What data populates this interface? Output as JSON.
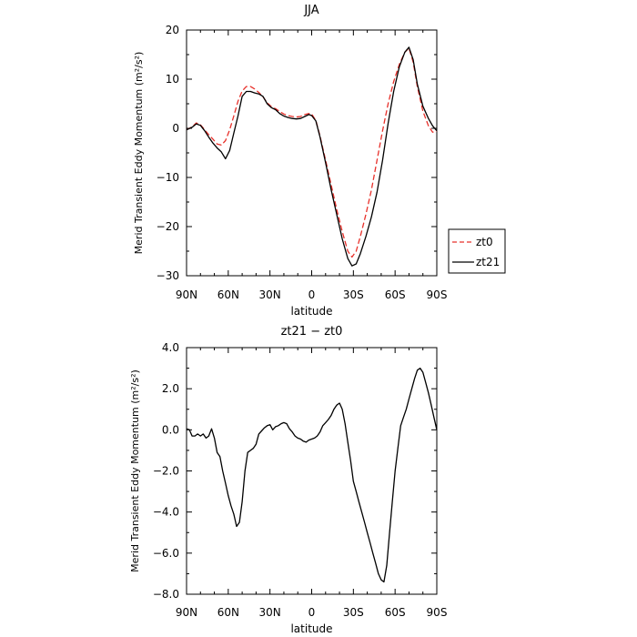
{
  "chart_data": [
    {
      "type": "line",
      "title": "JJA",
      "xlabel": "latitude",
      "ylabel": "Merid Transient Eddy Momentum (m²/s²)",
      "xlim": [
        90,
        -90
      ],
      "ylim": [
        -30,
        20
      ],
      "xticks": [
        90,
        60,
        30,
        0,
        -30,
        -60,
        -90
      ],
      "xtick_labels": [
        "90N",
        "60N",
        "30N",
        "0",
        "30S",
        "60S",
        "90S"
      ],
      "yticks": [
        -30,
        -20,
        -10,
        0,
        10,
        20
      ],
      "ytick_labels": [
        "−30",
        "−20",
        "−10",
        "0",
        "10",
        "20"
      ],
      "grid": false,
      "legend_position": "right",
      "series": [
        {
          "name": "zt0",
          "color": "#e8302a",
          "dash": "dashed",
          "x": [
            90,
            86,
            83,
            80,
            77,
            74,
            71,
            68,
            65,
            62,
            59,
            56,
            53,
            50,
            47,
            44,
            41,
            38,
            35,
            32,
            29,
            26,
            23,
            20,
            17,
            14,
            11,
            8,
            5,
            2,
            0,
            -3,
            -6,
            -10,
            -14,
            -18,
            -22,
            -26,
            -29,
            -32,
            -35,
            -39,
            -43,
            -47,
            -51,
            -55,
            -59,
            -63,
            -67,
            -70,
            -73,
            -76,
            -80,
            -84,
            -87,
            -90
          ],
          "y": [
            -0.3,
            0.3,
            1.1,
            0.7,
            -0.3,
            -1.3,
            -2.2,
            -3.2,
            -3.4,
            -2.5,
            -0.3,
            2.5,
            5.5,
            7.6,
            8.5,
            8.5,
            8.0,
            7.3,
            6.4,
            5.2,
            4.4,
            4.0,
            3.4,
            2.9,
            2.6,
            2.4,
            2.3,
            2.4,
            2.8,
            3.0,
            2.9,
            1.6,
            -1.6,
            -6.5,
            -11.5,
            -16.5,
            -21.0,
            -25.0,
            -26.2,
            -25.0,
            -22.0,
            -17.5,
            -12.5,
            -6.5,
            -0.5,
            5.0,
            9.5,
            13.0,
            15.5,
            16.3,
            13.5,
            8.5,
            3.5,
            0.5,
            -0.8,
            -0.5
          ]
        },
        {
          "name": "zt21",
          "color": "#000000",
          "dash": "solid",
          "x": [
            90,
            86,
            83,
            80,
            77,
            74,
            71,
            68,
            65,
            62,
            59,
            56,
            53,
            50,
            47,
            44,
            41,
            38,
            35,
            32,
            29,
            26,
            23,
            20,
            17,
            14,
            11,
            8,
            5,
            2,
            0,
            -3,
            -6,
            -10,
            -14,
            -18,
            -22,
            -26,
            -29,
            -32,
            -35,
            -39,
            -43,
            -47,
            -51,
            -55,
            -59,
            -63,
            -67,
            -70,
            -73,
            -76,
            -80,
            -84,
            -87,
            -90
          ],
          "y": [
            -0.3,
            0.2,
            0.9,
            0.6,
            -0.5,
            -1.8,
            -3.0,
            -4.0,
            -4.8,
            -6.2,
            -4.5,
            -1.0,
            2.5,
            6.5,
            7.5,
            7.5,
            7.2,
            7.0,
            6.5,
            5.0,
            4.2,
            3.8,
            3.0,
            2.5,
            2.2,
            2.0,
            1.9,
            2.0,
            2.4,
            2.8,
            2.6,
            1.5,
            -1.8,
            -7.0,
            -12.5,
            -17.5,
            -22.5,
            -26.5,
            -28.0,
            -27.6,
            -25.5,
            -22.0,
            -18.0,
            -13.0,
            -6.5,
            1.0,
            7.5,
            12.5,
            15.5,
            16.5,
            14.0,
            9.0,
            4.5,
            2.0,
            0.5,
            -0.5
          ]
        }
      ]
    },
    {
      "type": "line",
      "title": "zt21 − zt0",
      "xlabel": "latitude",
      "ylabel": "Merid Transient Eddy Momentum (m²/s²)",
      "xlim": [
        90,
        -90
      ],
      "ylim": [
        -8,
        4
      ],
      "xticks": [
        90,
        60,
        30,
        0,
        -30,
        -60,
        -90
      ],
      "xtick_labels": [
        "90N",
        "60N",
        "30N",
        "0",
        "30S",
        "60S",
        "90S"
      ],
      "yticks": [
        -8,
        -6,
        -4,
        -2,
        0,
        2,
        4
      ],
      "ytick_labels": [
        "−8.0",
        "−6.0",
        "−4.0",
        "−2.0",
        "0.0",
        "2.0",
        "4.0"
      ],
      "grid": false,
      "series": [
        {
          "name": "",
          "color": "#000000",
          "dash": "solid",
          "x": [
            90,
            88,
            86,
            84,
            82,
            80,
            78,
            76,
            74,
            72,
            70,
            68,
            66,
            64,
            62,
            60,
            58,
            56,
            54,
            52,
            50,
            48,
            46,
            44,
            42,
            40,
            38,
            36,
            34,
            32,
            30,
            28,
            26,
            24,
            22,
            20,
            18,
            16,
            14,
            12,
            10,
            8,
            6,
            4,
            2,
            0,
            -2,
            -4,
            -6,
            -8,
            -10,
            -12,
            -14,
            -16,
            -18,
            -20,
            -22,
            -24,
            -26,
            -28,
            -30,
            -32,
            -34,
            -36,
            -38,
            -40,
            -42,
            -44,
            -46,
            -48,
            -50,
            -52,
            -54,
            -56,
            -58,
            -60,
            -62,
            -64,
            -66,
            -68,
            -70,
            -72,
            -74,
            -76,
            -78,
            -80,
            -82,
            -84,
            -86,
            -88,
            -90
          ],
          "y": [
            0.05,
            0.0,
            -0.3,
            -0.3,
            -0.2,
            -0.3,
            -0.2,
            -0.4,
            -0.3,
            0.05,
            -0.4,
            -1.1,
            -1.3,
            -2.0,
            -2.6,
            -3.2,
            -3.7,
            -4.1,
            -4.7,
            -4.5,
            -3.5,
            -2.0,
            -1.1,
            -1.0,
            -0.9,
            -0.7,
            -0.2,
            -0.05,
            0.1,
            0.2,
            0.25,
            0.0,
            0.15,
            0.2,
            0.3,
            0.35,
            0.3,
            0.05,
            -0.1,
            -0.3,
            -0.4,
            -0.45,
            -0.55,
            -0.6,
            -0.5,
            -0.45,
            -0.4,
            -0.3,
            -0.1,
            0.2,
            0.35,
            0.5,
            0.7,
            1.0,
            1.2,
            1.3,
            1.0,
            0.3,
            -0.6,
            -1.5,
            -2.5,
            -3.0,
            -3.5,
            -4.0,
            -4.5,
            -5.0,
            -5.5,
            -6.0,
            -6.5,
            -7.0,
            -7.3,
            -7.4,
            -6.6,
            -5.0,
            -3.5,
            -2.0,
            -0.9,
            0.2,
            0.6,
            1.0,
            1.5,
            2.0,
            2.5,
            2.9,
            3.0,
            2.8,
            2.3,
            1.8,
            1.2,
            0.6,
            0.0
          ]
        }
      ]
    }
  ]
}
